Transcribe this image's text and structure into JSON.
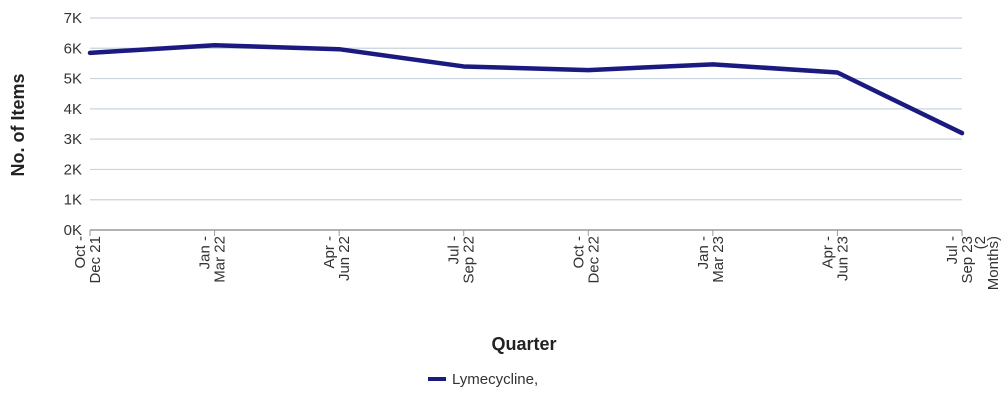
{
  "chart_data": {
    "type": "line",
    "title": "",
    "xlabel": "Quarter",
    "ylabel": "No. of Items",
    "ylim": [
      0,
      7000
    ],
    "y_ticks": [
      0,
      1000,
      2000,
      3000,
      4000,
      5000,
      6000,
      7000
    ],
    "y_tick_labels": [
      "0K",
      "1K",
      "2K",
      "3K",
      "4K",
      "5K",
      "6K",
      "7K"
    ],
    "categories": [
      [
        "Oct -",
        "Dec 21"
      ],
      [
        "Jan -",
        "Mar 22"
      ],
      [
        "Apr -",
        "Jun 22"
      ],
      [
        "Jul -",
        "Sep 22"
      ],
      [
        "Oct -",
        "Dec 22"
      ],
      [
        "Jan -",
        "Mar 23"
      ],
      [
        "Apr -",
        "Jun 23"
      ],
      [
        "Jul -",
        "Sep 23",
        "(2",
        "Months)"
      ]
    ],
    "series": [
      {
        "name": "Lymecycline,",
        "color": "#1a1a80",
        "values": [
          5850,
          6100,
          5970,
          5400,
          5280,
          5470,
          5200,
          3200
        ]
      }
    ],
    "grid": true,
    "legend_position": "bottom-center"
  }
}
